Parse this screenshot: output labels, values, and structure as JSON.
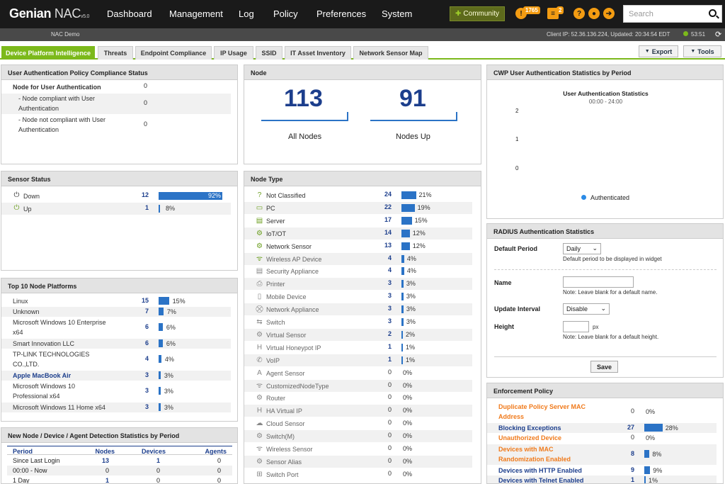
{
  "app": {
    "brand": "Genian",
    "product": "NAC",
    "version": "v5.0"
  },
  "menu": [
    "Dashboard",
    "Management",
    "Log",
    "Policy",
    "Preferences",
    "System"
  ],
  "topbar": {
    "community_label": "Community",
    "alerts_count": "1765",
    "tasks_count": "2",
    "search_placeholder": "Search"
  },
  "subbar": {
    "site": "NAC Demo",
    "client_ip": "Client IP:  52.36.136.224,   Updated:  20:34:54  EDT",
    "timer": "53:51"
  },
  "tabs": [
    "Device Platform Intelligence",
    "Threats",
    "Endpoint Compliance",
    "IP Usage",
    "SSID",
    "IT Asset Inventory",
    "Network Sensor Map"
  ],
  "toolbar": {
    "export": "Export",
    "tools": "Tools"
  },
  "auth_policy": {
    "title": "User Authentication Policy Compliance Status",
    "rows": [
      {
        "label": "Node for User Authentication",
        "value": "0",
        "bold": true
      },
      {
        "label": "- Node compliant with User Authentication",
        "value": "0"
      },
      {
        "label": "- Node not compliant with User Authentication",
        "value": "0"
      }
    ]
  },
  "node": {
    "title": "Node",
    "all_value": "113",
    "all_label": "All Nodes",
    "up_value": "91",
    "up_label": "Nodes Up"
  },
  "cwp": {
    "title": "CWP User Authentication Statistics by Period",
    "chart_title": "User Authentication Statistics",
    "chart_subtitle": "00:00 - 24:00",
    "legend": "Authenticated",
    "yticks": [
      "2",
      "1",
      "0"
    ]
  },
  "sensor_status": {
    "title": "Sensor Status",
    "rows": [
      {
        "label": "Down",
        "value": "12",
        "pct": "92%",
        "fraction": 0.92
      },
      {
        "label": "Up",
        "value": "1",
        "pct": "8%",
        "fraction": 0.08
      }
    ]
  },
  "node_type": {
    "title": "Node Type",
    "rows": [
      {
        "label": "Not Classified",
        "value": "24",
        "pct": "21%",
        "fraction": 0.21
      },
      {
        "label": "PC",
        "value": "22",
        "pct": "19%",
        "fraction": 0.19
      },
      {
        "label": "Server",
        "value": "17",
        "pct": "15%",
        "fraction": 0.15
      },
      {
        "label": "IoT/OT",
        "value": "14",
        "pct": "12%",
        "fraction": 0.12
      },
      {
        "label": "Network Sensor",
        "value": "13",
        "pct": "12%",
        "fraction": 0.12
      },
      {
        "label": "Wireless AP Device",
        "value": "4",
        "pct": "4%",
        "fraction": 0.04
      },
      {
        "label": "Security Appliance",
        "value": "4",
        "pct": "4%",
        "fraction": 0.04
      },
      {
        "label": "Printer",
        "value": "3",
        "pct": "3%",
        "fraction": 0.03
      },
      {
        "label": "Mobile Device",
        "value": "3",
        "pct": "3%",
        "fraction": 0.03
      },
      {
        "label": "Network Appliance",
        "value": "3",
        "pct": "3%",
        "fraction": 0.03
      },
      {
        "label": "Switch",
        "value": "3",
        "pct": "3%",
        "fraction": 0.03
      },
      {
        "label": "Virtual Sensor",
        "value": "2",
        "pct": "2%",
        "fraction": 0.02
      },
      {
        "label": "Virtual Honeypot IP",
        "value": "1",
        "pct": "1%",
        "fraction": 0.01
      },
      {
        "label": "VoIP",
        "value": "1",
        "pct": "1%",
        "fraction": 0.01
      },
      {
        "label": "Agent Sensor",
        "value": "0",
        "pct": "0%",
        "fraction": 0
      },
      {
        "label": "CustomizedNodeType",
        "value": "0",
        "pct": "0%",
        "fraction": 0
      },
      {
        "label": "Router",
        "value": "0",
        "pct": "0%",
        "fraction": 0
      },
      {
        "label": "HA Virtual IP",
        "value": "0",
        "pct": "0%",
        "fraction": 0
      },
      {
        "label": "Cloud Sensor",
        "value": "0",
        "pct": "0%",
        "fraction": 0
      },
      {
        "label": "Switch(M)",
        "value": "0",
        "pct": "0%",
        "fraction": 0
      },
      {
        "label": "Wireless Sensor",
        "value": "0",
        "pct": "0%",
        "fraction": 0
      },
      {
        "label": "Sensor Alias",
        "value": "0",
        "pct": "0%",
        "fraction": 0
      },
      {
        "label": "Switch Port",
        "value": "0",
        "pct": "0%",
        "fraction": 0
      }
    ]
  },
  "radius": {
    "title": "RADIUS Authentication Statistics",
    "default_period_label": "Default Period",
    "default_period_value": "Daily",
    "default_period_note": "Default period to be displayed in widget",
    "name_label": "Name",
    "name_note": "Note: Leave blank for a default name.",
    "interval_label": "Update Interval",
    "interval_value": "Disable",
    "height_label": "Height",
    "height_unit": "px",
    "height_note": "Note: Leave blank for a default height.",
    "save": "Save"
  },
  "platforms": {
    "title": "Top 10 Node Platforms",
    "rows": [
      {
        "label": "Linux",
        "value": "15",
        "pct": "15%",
        "fraction": 0.15
      },
      {
        "label": "Unknown",
        "value": "7",
        "pct": "7%",
        "fraction": 0.07
      },
      {
        "label": "Microsoft Windows 10 Enterprise x64",
        "value": "6",
        "pct": "6%",
        "fraction": 0.06
      },
      {
        "label": "Smart Innovation LLC",
        "value": "6",
        "pct": "6%",
        "fraction": 0.06
      },
      {
        "label": "TP-LINK TECHNOLOGIES CO.,LTD.",
        "value": "4",
        "pct": "4%",
        "fraction": 0.04
      },
      {
        "label": "Apple MacBook Air",
        "value": "3",
        "pct": "3%",
        "fraction": 0.03
      },
      {
        "label": "Microsoft Windows 10 Professional x64",
        "value": "3",
        "pct": "3%",
        "fraction": 0.03
      },
      {
        "label": "Microsoft Windows 11 Home x64",
        "value": "3",
        "pct": "3%",
        "fraction": 0.03
      }
    ]
  },
  "detection": {
    "title": "New Node / Device / Agent Detection Statistics by Period",
    "headers": [
      "Period",
      "Nodes",
      "Devices",
      "Agents"
    ],
    "rows": [
      [
        "Since Last Login",
        "13",
        "1",
        "0"
      ],
      [
        "00:00 - Now",
        "0",
        "0",
        "0"
      ],
      [
        "1 Day",
        "1",
        "0",
        "0"
      ]
    ]
  },
  "enforcement": {
    "title": "Enforcement Policy",
    "rows": [
      {
        "label": "Duplicate Policy Server MAC Address",
        "value": "0",
        "pct": "0%",
        "fraction": 0,
        "style": "orange"
      },
      {
        "label": "Blocking Exceptions",
        "value": "27",
        "pct": "28%",
        "fraction": 0.28,
        "style": "blue"
      },
      {
        "label": "Unauthorized Device",
        "value": "0",
        "pct": "0%",
        "fraction": 0,
        "style": "orange"
      },
      {
        "label": "Devices with MAC Randomization Enabled",
        "value": "8",
        "pct": "8%",
        "fraction": 0.08,
        "style": "orange"
      },
      {
        "label": "Devices with HTTP Enabled",
        "value": "9",
        "pct": "9%",
        "fraction": 0.09,
        "style": "blue"
      },
      {
        "label": "Devices with Telnet Enabled",
        "value": "1",
        "pct": "1%",
        "fraction": 0.01,
        "style": "blue"
      }
    ]
  }
}
